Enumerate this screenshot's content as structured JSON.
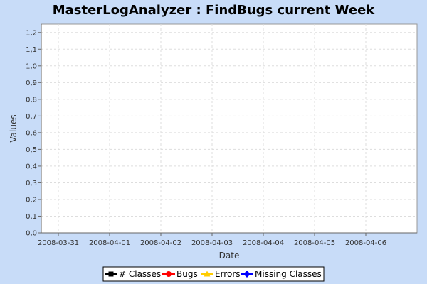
{
  "chart_data": {
    "type": "line",
    "title": "MasterLogAnalyzer : FindBugs current Week",
    "xlabel": "Date",
    "ylabel": "Values",
    "x_ticks": [
      "2008-03-31",
      "2008-04-01",
      "2008-04-02",
      "2008-04-03",
      "2008-04-04",
      "2008-04-05",
      "2008-04-06"
    ],
    "y_ticks": [
      "0,0",
      "0,1",
      "0,2",
      "0,3",
      "0,4",
      "0,5",
      "0,6",
      "0,7",
      "0,8",
      "0,9",
      "1,0",
      "1,1",
      "1,2"
    ],
    "ylim": [
      0,
      1.25
    ],
    "grid": true,
    "legend_position": "bottom",
    "plot_background": "#ffffff",
    "page_background": "#c8dcf8",
    "grid_color": "#dddddd",
    "series": [
      {
        "name": "# Classes",
        "color": "#000000",
        "marker": "square",
        "values": []
      },
      {
        "name": "Bugs",
        "color": "#ff0000",
        "marker": "circle",
        "values": []
      },
      {
        "name": "Errors",
        "color": "#ffcc00",
        "marker": "triangle",
        "values": []
      },
      {
        "name": "Missing Classes",
        "color": "#0000ff",
        "marker": "diamond",
        "values": []
      }
    ]
  }
}
